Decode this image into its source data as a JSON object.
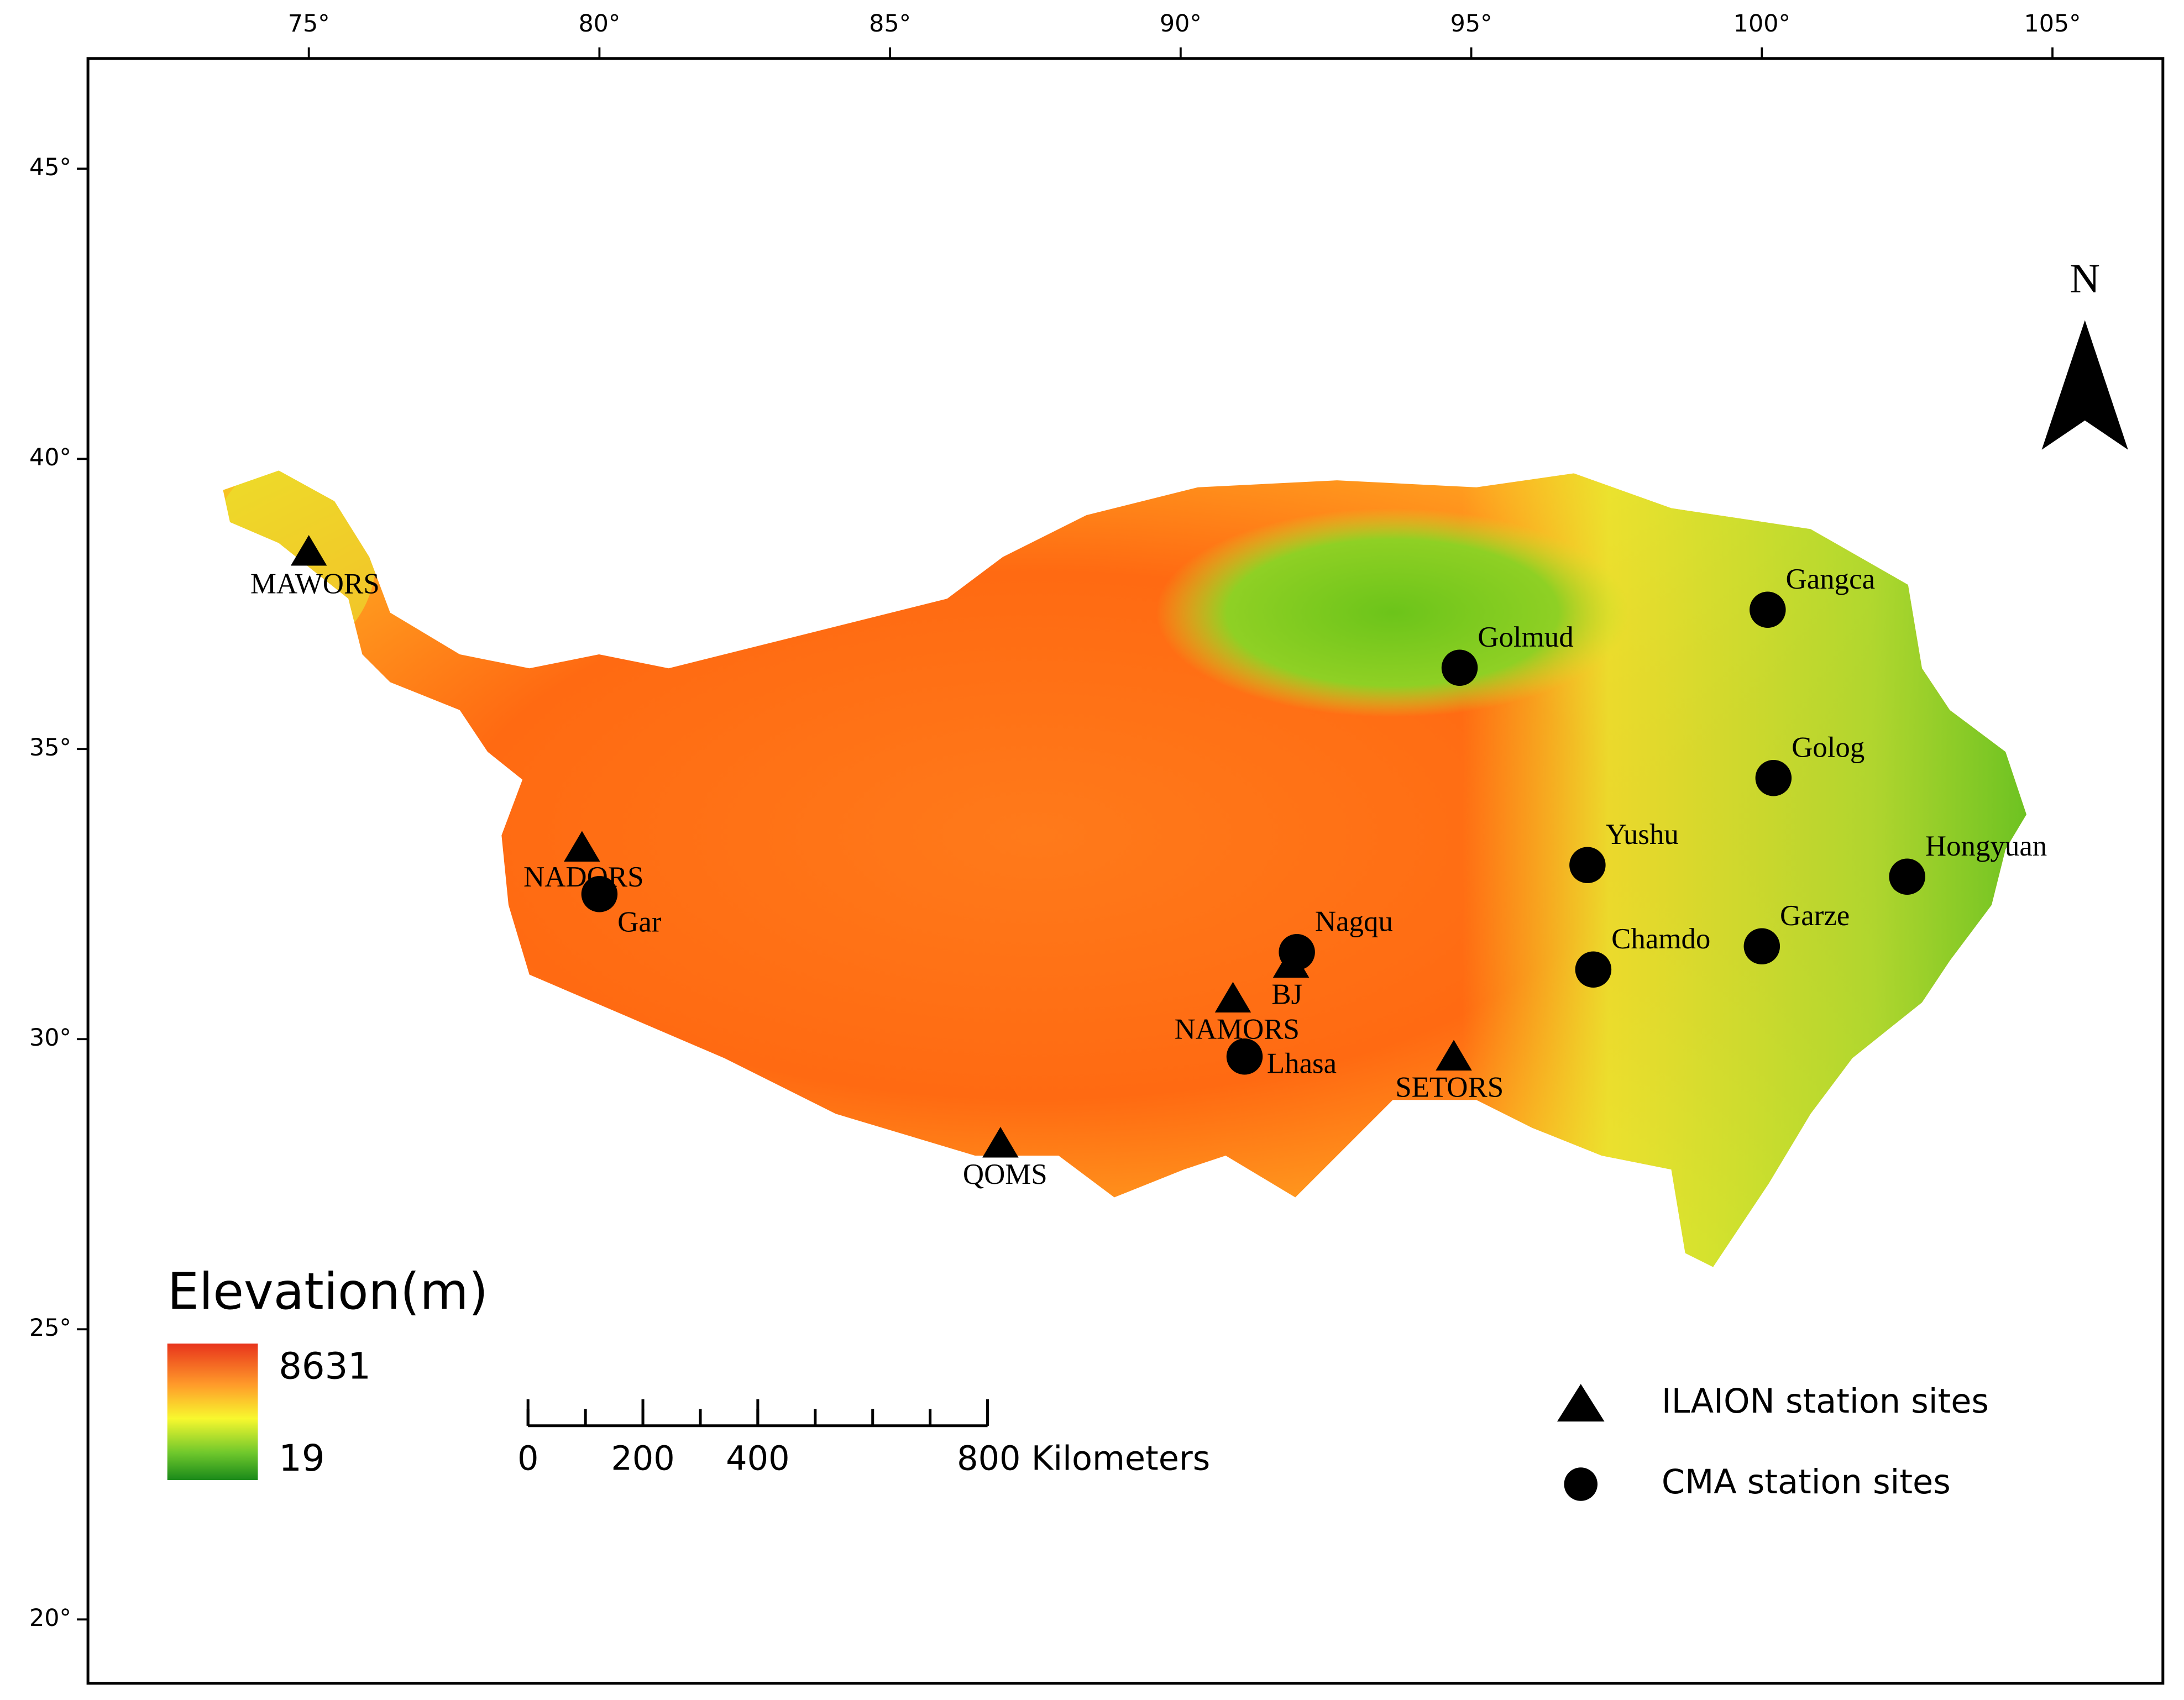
{
  "map": {
    "xlim": [
      71.2,
      106.9
    ],
    "ylim": [
      18.9,
      46.9
    ],
    "xticks": [
      {
        "value": 75,
        "label": "75°"
      },
      {
        "value": 80,
        "label": "80°"
      },
      {
        "value": 85,
        "label": "85°"
      },
      {
        "value": 90,
        "label": "90°"
      },
      {
        "value": 95,
        "label": "95°"
      },
      {
        "value": 100,
        "label": "100°"
      },
      {
        "value": 105,
        "label": "105°"
      }
    ],
    "yticks": [
      {
        "value": 45,
        "label": "45°"
      },
      {
        "value": 40,
        "label": "40°"
      },
      {
        "value": 35,
        "label": "35°"
      },
      {
        "value": 30,
        "label": "30°"
      },
      {
        "value": 25,
        "label": "25°"
      },
      {
        "value": 20,
        "label": "20°"
      }
    ],
    "north_arrow": "N",
    "elevation_legend": {
      "title": "Elevation(m)",
      "max": 8631,
      "min": 19
    },
    "scale_bar": {
      "ticks": [
        0,
        200,
        400,
        {
          "value": 800,
          "label": "800 Kilometers"
        }
      ]
    },
    "series": [
      {
        "name": "ILAION station sites",
        "marker": "triangle",
        "color": "#000000",
        "points": [
          {
            "name": "MAWORS",
            "lon": 75.0,
            "lat": 38.4
          },
          {
            "name": "NADORS",
            "lon": 79.7,
            "lat": 33.3
          },
          {
            "name": "QOMS",
            "lon": 86.9,
            "lat": 28.2
          },
          {
            "name": "NAMORS",
            "lon": 90.9,
            "lat": 30.7
          },
          {
            "name": "BJ",
            "lon": 91.9,
            "lat": 31.3
          },
          {
            "name": "SETORS",
            "lon": 94.7,
            "lat": 29.7
          }
        ]
      },
      {
        "name": "CMA station sites",
        "marker": "circle",
        "color": "#000000",
        "points": [
          {
            "name": "Gangca",
            "lon": 100.1,
            "lat": 37.4
          },
          {
            "name": "Golmud",
            "lon": 94.8,
            "lat": 36.4
          },
          {
            "name": "Golog",
            "lon": 100.2,
            "lat": 34.5
          },
          {
            "name": "Yushu",
            "lon": 97.0,
            "lat": 33.0
          },
          {
            "name": "Hongyuan",
            "lon": 102.5,
            "lat": 32.8
          },
          {
            "name": "Gar",
            "lon": 80.0,
            "lat": 32.5
          },
          {
            "name": "Nagqu",
            "lon": 92.0,
            "lat": 31.5
          },
          {
            "name": "Chamdo",
            "lon": 97.1,
            "lat": 31.2
          },
          {
            "name": "Garze",
            "lon": 100.0,
            "lat": 31.6
          },
          {
            "name": "Lhasa",
            "lon": 91.1,
            "lat": 29.7
          }
        ]
      }
    ]
  }
}
